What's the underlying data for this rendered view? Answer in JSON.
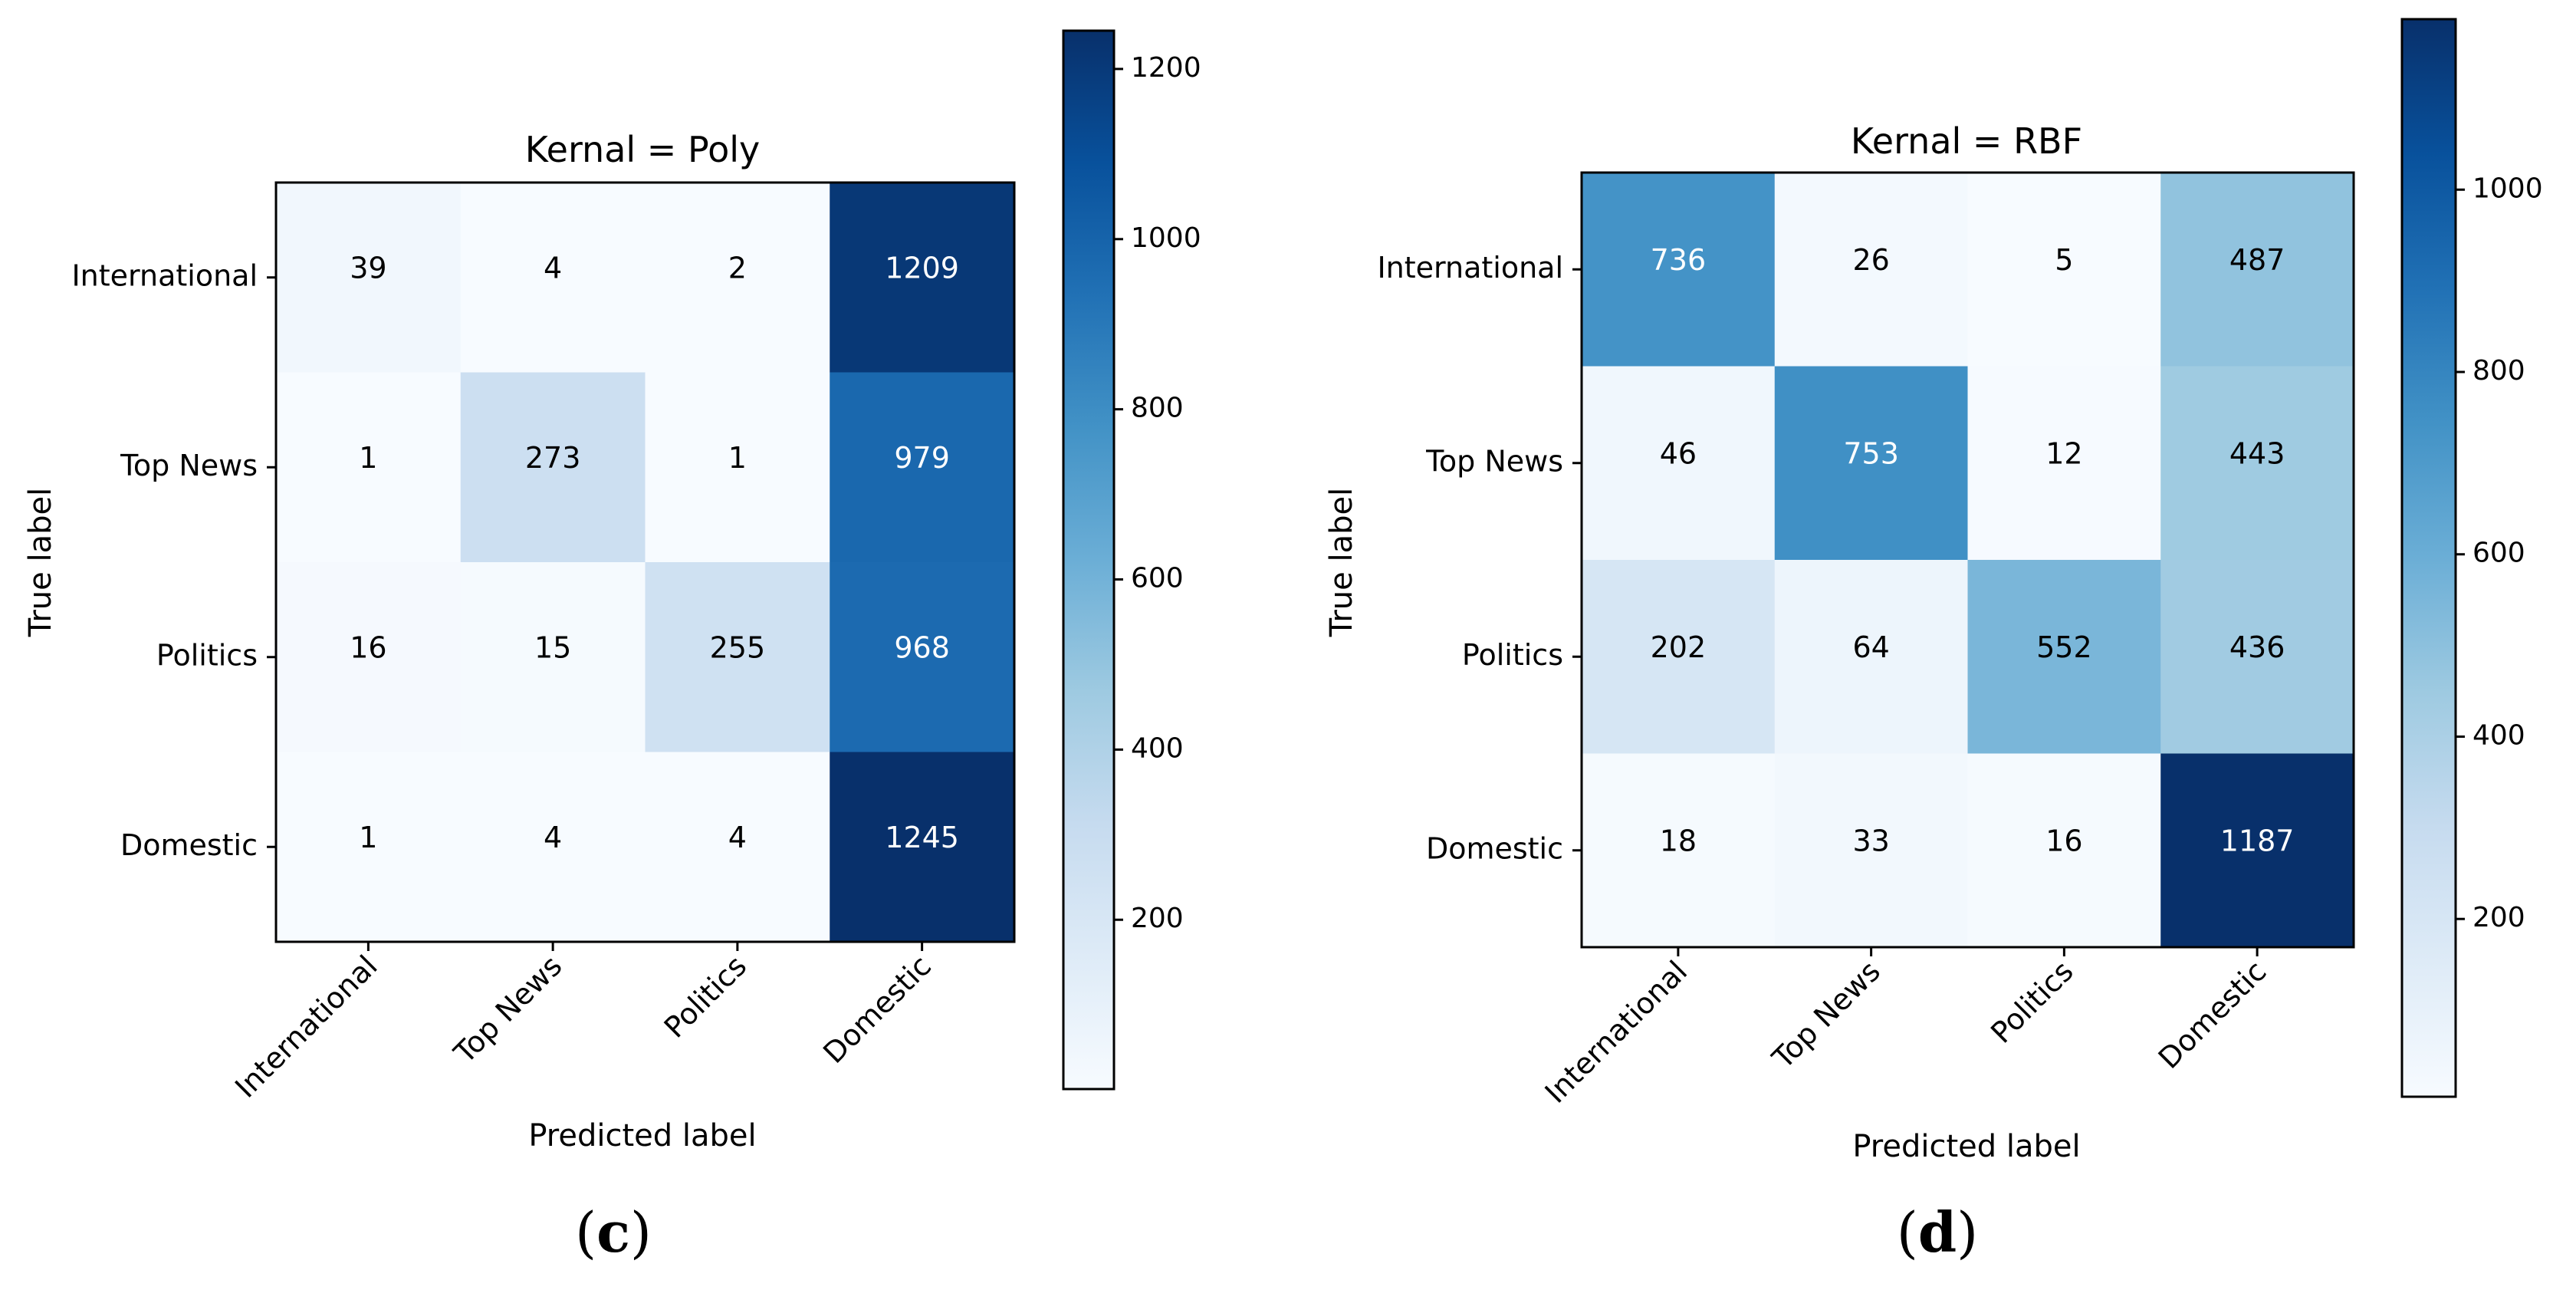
{
  "chart_data": [
    {
      "type": "heatmap",
      "panel": "c",
      "title": "Kernal = Poly",
      "xlabel": "Predicted label",
      "ylabel": "True label",
      "x_categories": [
        "International",
        "Top News",
        "Politics",
        "Domestic"
      ],
      "y_categories": [
        "International",
        "Top News",
        "Politics",
        "Domestic"
      ],
      "values": [
        [
          39,
          4,
          2,
          1209
        ],
        [
          1,
          273,
          1,
          979
        ],
        [
          16,
          15,
          255,
          968
        ],
        [
          1,
          4,
          4,
          1245
        ]
      ],
      "colormap": "Blues",
      "vmin": 1,
      "vmax": 1245,
      "colorbar_ticks": [
        200,
        400,
        600,
        800,
        1000,
        1200
      ]
    },
    {
      "type": "heatmap",
      "panel": "d",
      "title": "Kernal = RBF",
      "xlabel": "Predicted label",
      "ylabel": "True label",
      "x_categories": [
        "International",
        "Top News",
        "Politics",
        "Domestic"
      ],
      "y_categories": [
        "International",
        "Top News",
        "Politics",
        "Domestic"
      ],
      "values": [
        [
          736,
          26,
          5,
          487
        ],
        [
          46,
          753,
          12,
          443
        ],
        [
          202,
          64,
          552,
          436
        ],
        [
          18,
          33,
          16,
          1187
        ]
      ],
      "colormap": "Blues",
      "vmin": 5,
      "vmax": 1187,
      "colorbar_ticks": [
        200,
        400,
        600,
        800,
        1000
      ]
    }
  ],
  "panel_labels": [
    "(c)",
    "(d)"
  ]
}
